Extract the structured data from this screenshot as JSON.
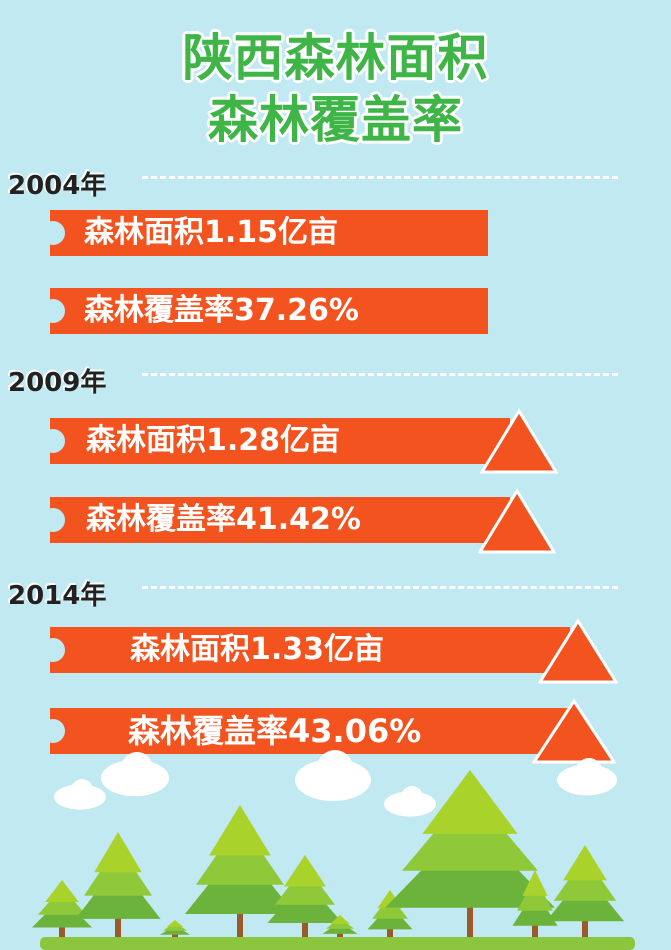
{
  "title": {
    "line1": "陕西森林面积",
    "line2": "森林覆盖率"
  },
  "colors": {
    "background": "#c1e9f1",
    "title": "#3fb548",
    "bar": "#f2531f",
    "tree_light": "#a9d22a",
    "tree_dark": "#6bb33a",
    "trunk": "#9b5a2a",
    "ground": "#8cc63f"
  },
  "sections": [
    {
      "year": "2004年",
      "area": "森林面积1.15亿亩",
      "coverage": "森林覆盖率37.26%",
      "increase": false
    },
    {
      "year": "2009年",
      "area": "森林面积1.28亿亩",
      "coverage": "森林覆盖率41.42%",
      "increase": true
    },
    {
      "year": "2014年",
      "area": "森林面积1.33亿亩",
      "coverage": "森林覆盖率43.06%",
      "increase": true
    }
  ],
  "icons": {
    "increase": "up-triangle-icon",
    "scene": "forest-illustration"
  }
}
